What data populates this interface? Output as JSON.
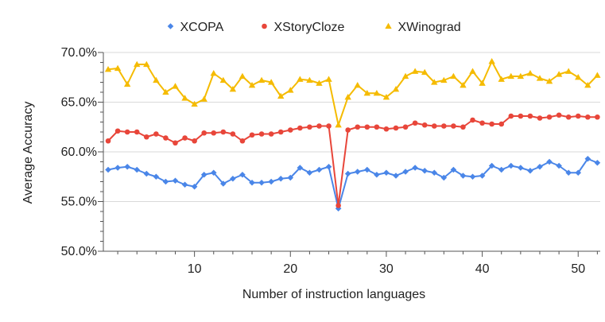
{
  "chart_data": {
    "type": "line",
    "title": "",
    "xlabel": "Number of instruction languages",
    "ylabel": "Average Accuracy",
    "xlim": [
      0.5,
      52.3
    ],
    "ylim": [
      50,
      70
    ],
    "xticks": [
      10,
      20,
      30,
      40,
      50
    ],
    "yticks": [
      50,
      55,
      60,
      65,
      70
    ],
    "ytick_labels": [
      "50.0%",
      "55.0%",
      "60.0%",
      "65.0%",
      "70.0%"
    ],
    "grid": "horizontal",
    "legend_position": "top",
    "x": [
      1,
      2,
      3,
      4,
      5,
      6,
      7,
      8,
      9,
      10,
      11,
      12,
      13,
      14,
      15,
      16,
      17,
      18,
      19,
      20,
      21,
      22,
      23,
      24,
      25,
      26,
      27,
      28,
      29,
      30,
      31,
      32,
      33,
      34,
      35,
      36,
      37,
      38,
      39,
      40,
      41,
      42,
      43,
      44,
      45,
      46,
      47,
      48,
      49,
      50,
      51,
      52
    ],
    "series": [
      {
        "name": "XCOPA",
        "color": "#4a86e8",
        "marker": "diamond",
        "values": [
          58.2,
          58.4,
          58.5,
          58.2,
          57.8,
          57.5,
          57.0,
          57.1,
          56.7,
          56.5,
          57.7,
          57.9,
          56.8,
          57.3,
          57.7,
          56.9,
          56.9,
          57.0,
          57.3,
          57.4,
          58.4,
          57.9,
          58.2,
          58.5,
          54.3,
          57.8,
          58.0,
          58.2,
          57.7,
          57.9,
          57.6,
          58.0,
          58.4,
          58.1,
          57.9,
          57.4,
          58.2,
          57.6,
          57.5,
          57.6,
          58.6,
          58.2,
          58.6,
          58.4,
          58.1,
          58.5,
          59.0,
          58.6,
          57.9,
          57.9,
          59.3,
          58.9
        ]
      },
      {
        "name": "XStoryCloze",
        "color": "#e8463a",
        "marker": "circle",
        "values": [
          61.1,
          62.1,
          62.0,
          62.0,
          61.5,
          61.8,
          61.4,
          60.9,
          61.4,
          61.1,
          61.9,
          61.9,
          62.0,
          61.8,
          61.1,
          61.7,
          61.8,
          61.8,
          62.0,
          62.2,
          62.4,
          62.5,
          62.6,
          62.6,
          54.6,
          62.2,
          62.5,
          62.5,
          62.5,
          62.3,
          62.4,
          62.5,
          62.9,
          62.7,
          62.6,
          62.6,
          62.6,
          62.5,
          63.2,
          62.9,
          62.8,
          62.8,
          63.6,
          63.6,
          63.6,
          63.4,
          63.5,
          63.7,
          63.5,
          63.6,
          63.5,
          63.5
        ]
      },
      {
        "name": "XWinograd",
        "color": "#f5bb00",
        "marker": "triangle",
        "values": [
          68.3,
          68.4,
          66.8,
          68.8,
          68.8,
          67.2,
          66.0,
          66.6,
          65.4,
          64.8,
          65.3,
          67.9,
          67.2,
          66.3,
          67.6,
          66.7,
          67.2,
          67.0,
          65.6,
          66.2,
          67.3,
          67.2,
          66.9,
          67.3,
          62.7,
          65.5,
          66.7,
          65.9,
          65.9,
          65.5,
          66.3,
          67.6,
          68.1,
          68.0,
          67.0,
          67.2,
          67.6,
          66.7,
          68.1,
          66.9,
          69.1,
          67.3,
          67.6,
          67.6,
          67.9,
          67.4,
          67.1,
          67.8,
          68.1,
          67.5,
          66.7,
          67.7
        ]
      }
    ]
  }
}
